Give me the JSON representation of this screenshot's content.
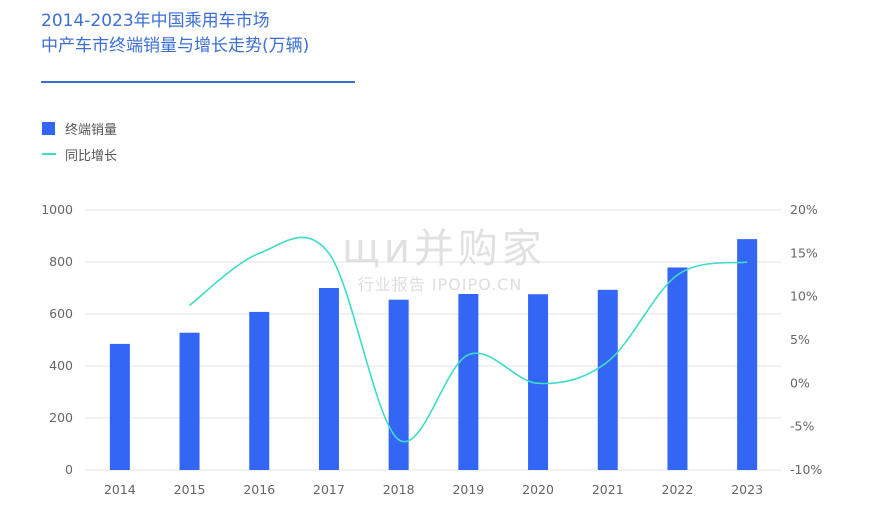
{
  "chart_data": {
    "type": "bar",
    "title": "2014-2023年中国乘用车市场",
    "subtitle": "中产车市终端销量与增长走势(万辆)",
    "categories": [
      "2014",
      "2015",
      "2016",
      "2017",
      "2018",
      "2019",
      "2020",
      "2021",
      "2022",
      "2023"
    ],
    "series": [
      {
        "name": "终端销量",
        "type": "bar",
        "axis": "left",
        "values": [
          485,
          528,
          608,
          700,
          655,
          677,
          676,
          693,
          779,
          888
        ]
      },
      {
        "name": "同比增长",
        "type": "line",
        "axis": "right",
        "values": [
          null,
          9.0,
          15.0,
          15.0,
          -6.5,
          3.3,
          0.0,
          2.5,
          12.5,
          14.0
        ]
      }
    ],
    "y_left": {
      "min": 0,
      "max": 1000,
      "ticks": [
        0,
        200,
        400,
        600,
        800,
        1000
      ]
    },
    "y_right": {
      "min": -10,
      "max": 20,
      "ticks": [
        "-10%",
        "-5%",
        "0%",
        "5%",
        "10%",
        "15%",
        "20%"
      ]
    },
    "legend_position": "top-left",
    "grid": true
  },
  "colors": {
    "bar": "#3366f5",
    "line": "#3fdcc8",
    "title": "#3b6fd6",
    "grid": "#e6e6e6"
  },
  "watermark": {
    "main": "щи并购家",
    "sub": "行业报告 IPOIPO.CN"
  }
}
